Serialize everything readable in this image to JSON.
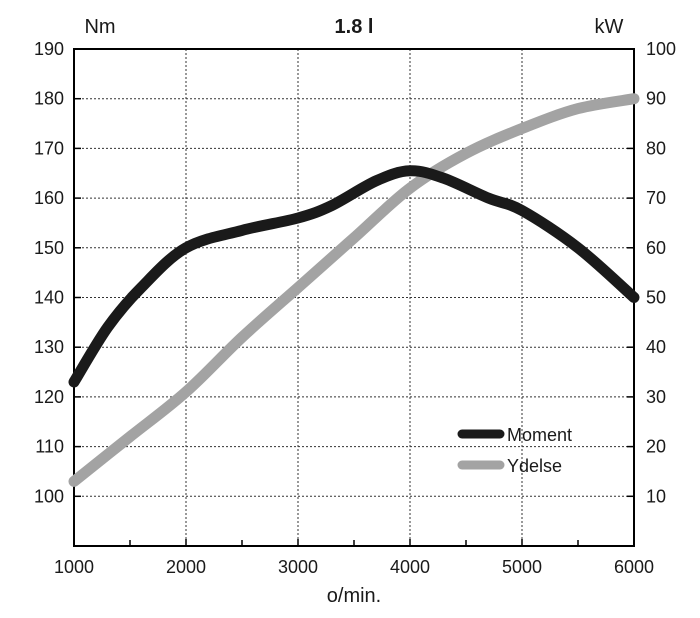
{
  "chart_data": {
    "type": "line",
    "title": "1.8 l",
    "xlabel": "o/min.",
    "ylabel_left": "Nm",
    "ylabel_right": "kW",
    "xlim": [
      1000,
      6000
    ],
    "ylim_left": [
      90,
      190
    ],
    "ylim_right": [
      0,
      100
    ],
    "x_ticks": [
      1000,
      2000,
      3000,
      4000,
      5000,
      6000
    ],
    "x_minor_ticks": [
      1500,
      2500,
      3500,
      4500,
      5500
    ],
    "y_left_ticks": [
      100,
      110,
      120,
      130,
      140,
      150,
      160,
      170,
      180,
      190
    ],
    "y_right_ticks": [
      10,
      20,
      30,
      40,
      50,
      60,
      70,
      80,
      90,
      100
    ],
    "grid": true,
    "legend_position": "bottom-right",
    "series": [
      {
        "name": "Moment",
        "axis": "left",
        "color": "#1a1a1a",
        "x": [
          1000,
          1300,
          1600,
          2000,
          2500,
          3000,
          3300,
          3700,
          4000,
          4300,
          4700,
          5000,
          5500,
          6000
        ],
        "values": [
          123,
          134,
          142,
          150,
          153.5,
          156,
          158.5,
          163.5,
          165.5,
          164,
          160,
          157.5,
          150,
          140
        ]
      },
      {
        "name": "Ydelse",
        "axis": "right",
        "color": "#a3a3a3",
        "x": [
          1000,
          1500,
          2000,
          2500,
          3000,
          3500,
          4000,
          4500,
          5000,
          5500,
          6000
        ],
        "values": [
          13,
          22,
          31,
          42,
          52,
          62,
          72,
          79,
          84,
          88,
          90
        ]
      }
    ]
  }
}
